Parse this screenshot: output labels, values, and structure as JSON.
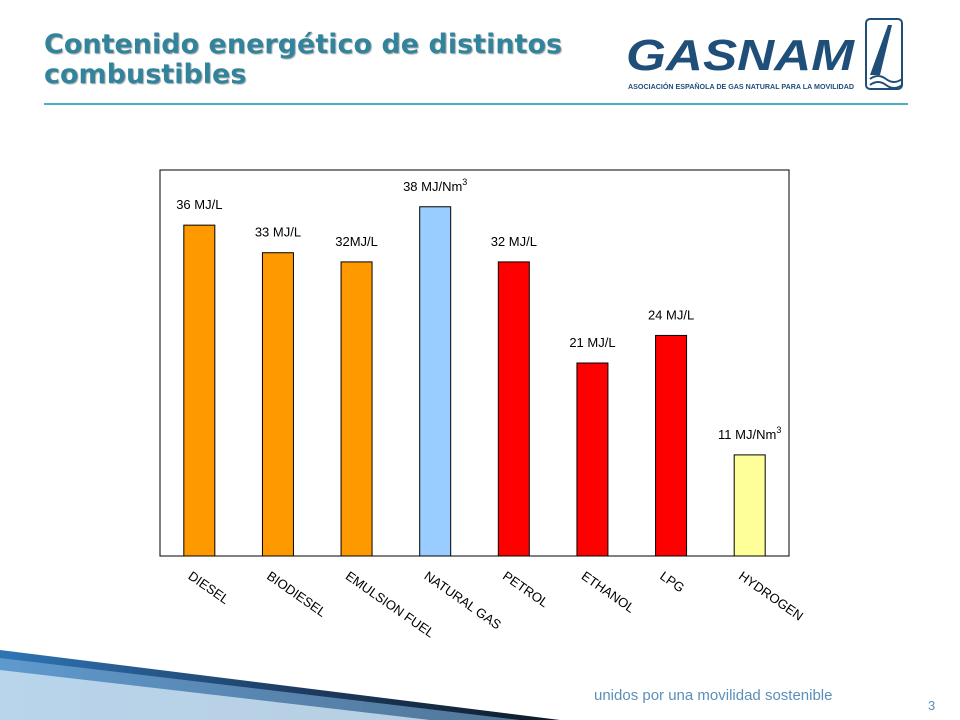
{
  "slide": {
    "title": "Contenido energético de distintos combustibles",
    "footer": "unidos por una movilidad sostenible",
    "page_number": "3"
  },
  "logo": {
    "name": "GASNAM",
    "subtitle": "ASOCIACIÓN ESPAÑOLA DE GAS NATURAL PARA LA MOVILIDAD",
    "color": "#1f4e79"
  },
  "colors": {
    "title": "#31849b",
    "rule": "#4bacc6",
    "footer": "#5b8fb9"
  },
  "chart_data": {
    "type": "bar",
    "categories": [
      "DIESEL",
      "BIODIESEL",
      "EMULSION FUEL",
      "NATURAL GAS",
      "PETROL",
      "ETHANOL",
      "LPG",
      "HYDROGEN"
    ],
    "values": [
      36,
      33,
      32,
      38,
      32,
      21,
      24,
      11
    ],
    "data_labels": [
      {
        "text": "36 MJ/L",
        "sup": ""
      },
      {
        "text": "33 MJ/L",
        "sup": ""
      },
      {
        "text": "32MJ/L",
        "sup": ""
      },
      {
        "text": "38 MJ/Nm",
        "sup": "3"
      },
      {
        "text": "32 MJ/L",
        "sup": ""
      },
      {
        "text": "21 MJ/L",
        "sup": ""
      },
      {
        "text": "24 MJ/L",
        "sup": ""
      },
      {
        "text": "11 MJ/Nm",
        "sup": "3"
      }
    ],
    "bar_colors": [
      "#ff9900",
      "#ff9900",
      "#ff9900",
      "#99ccff",
      "#ff0000",
      "#ff0000",
      "#ff0000",
      "#ffff99"
    ],
    "ylim": [
      0,
      42
    ],
    "grid": false,
    "legend": "none"
  }
}
